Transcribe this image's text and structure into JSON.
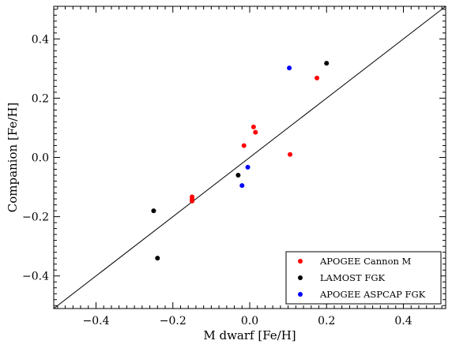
{
  "chart_data": {
    "type": "scatter",
    "xlabel": "M dwarf [Fe/H]",
    "ylabel": "Companion [Fe/H]",
    "xlim": [
      -0.51,
      0.51
    ],
    "ylim": [
      -0.51,
      0.51
    ],
    "grid": false,
    "legend_placement": "lower-right",
    "x_ticks": [
      -0.4,
      -0.2,
      0.0,
      0.2,
      0.4
    ],
    "x_tick_labels": [
      "−0.4",
      "−0.2",
      "0.0",
      "0.2",
      "0.4"
    ],
    "y_ticks": [
      -0.4,
      -0.2,
      0.0,
      0.2,
      0.4
    ],
    "y_tick_labels": [
      "−0.4",
      "−0.2",
      "0.0",
      "0.2",
      "0.4"
    ],
    "reference_line": {
      "x": [
        -0.51,
        0.51
      ],
      "y": [
        -0.51,
        0.51
      ],
      "color": "#000000"
    },
    "series": [
      {
        "name": "APOGEE Cannon M",
        "color": "#ff0000",
        "points": [
          {
            "x": -0.15,
            "y": -0.133
          },
          {
            "x": -0.15,
            "y": -0.14
          },
          {
            "x": -0.15,
            "y": -0.147
          },
          {
            "x": -0.015,
            "y": 0.04
          },
          {
            "x": 0.01,
            "y": 0.103
          },
          {
            "x": 0.015,
            "y": 0.085
          },
          {
            "x": 0.105,
            "y": 0.01
          },
          {
            "x": 0.175,
            "y": 0.268
          }
        ]
      },
      {
        "name": "LAMOST FGK",
        "color": "#000000",
        "points": [
          {
            "x": -0.25,
            "y": -0.18
          },
          {
            "x": -0.24,
            "y": -0.34
          },
          {
            "x": -0.03,
            "y": -0.06
          },
          {
            "x": 0.2,
            "y": 0.318
          }
        ]
      },
      {
        "name": "APOGEE ASPCAP FGK",
        "color": "#0000ff",
        "points": [
          {
            "x": -0.02,
            "y": -0.095
          },
          {
            "x": -0.005,
            "y": -0.033
          },
          {
            "x": 0.103,
            "y": 0.302
          }
        ]
      }
    ]
  }
}
